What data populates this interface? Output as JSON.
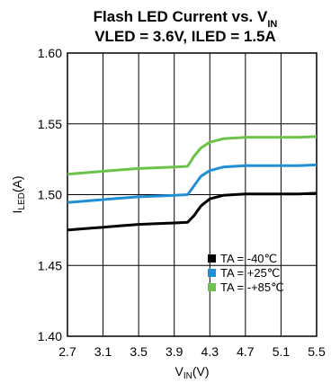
{
  "chart_data": {
    "type": "line",
    "title_line1": "Flash LED Current vs. V",
    "title_line1_sub": "IN",
    "title_line2": "VLED = 3.6V, ILED = 1.5A",
    "xlabel": "V",
    "xlabel_sub": "IN",
    "xlabel_unit": "(V)",
    "ylabel": "I",
    "ylabel_sub": "LED",
    "ylabel_unit": "(A)",
    "xlim": [
      2.7,
      5.5
    ],
    "ylim": [
      1.4,
      1.6
    ],
    "x_ticks": [
      "2.7",
      "3.1",
      "3.5",
      "3.9",
      "4.3",
      "4.7",
      "5.1",
      "5.5"
    ],
    "y_ticks": [
      "1.60",
      "1.55",
      "1.50",
      "1.45",
      "1.40"
    ],
    "grid": true,
    "legend_position": "bottom-right",
    "series": [
      {
        "name": "TA = -40℃",
        "color": "#000000",
        "x": [
          2.7,
          2.9,
          3.1,
          3.3,
          3.5,
          3.7,
          3.9,
          4.05,
          4.12,
          4.2,
          4.3,
          4.45,
          4.7,
          5.0,
          5.3,
          5.5
        ],
        "y": [
          1.475,
          1.476,
          1.477,
          1.478,
          1.479,
          1.4795,
          1.48,
          1.4805,
          1.485,
          1.492,
          1.497,
          1.4995,
          1.5005,
          1.5005,
          1.5005,
          1.501
        ]
      },
      {
        "name": "TA = +25℃",
        "color": "#1f8fd6",
        "x": [
          2.7,
          2.9,
          3.1,
          3.3,
          3.5,
          3.7,
          3.9,
          4.05,
          4.12,
          4.2,
          4.3,
          4.45,
          4.7,
          5.0,
          5.3,
          5.5
        ],
        "y": [
          1.4945,
          1.4955,
          1.4965,
          1.4975,
          1.4985,
          1.499,
          1.4995,
          1.5,
          1.506,
          1.513,
          1.517,
          1.5195,
          1.5205,
          1.5205,
          1.5205,
          1.521
        ]
      },
      {
        "name": "TA = -+85℃",
        "color": "#6cc24a",
        "x": [
          2.7,
          2.9,
          3.1,
          3.3,
          3.5,
          3.7,
          3.9,
          4.05,
          4.12,
          4.2,
          4.3,
          4.45,
          4.7,
          5.0,
          5.3,
          5.5
        ],
        "y": [
          1.5145,
          1.5155,
          1.5165,
          1.5175,
          1.5185,
          1.519,
          1.5195,
          1.52,
          1.527,
          1.533,
          1.537,
          1.5395,
          1.5405,
          1.5405,
          1.5405,
          1.541
        ]
      }
    ]
  }
}
